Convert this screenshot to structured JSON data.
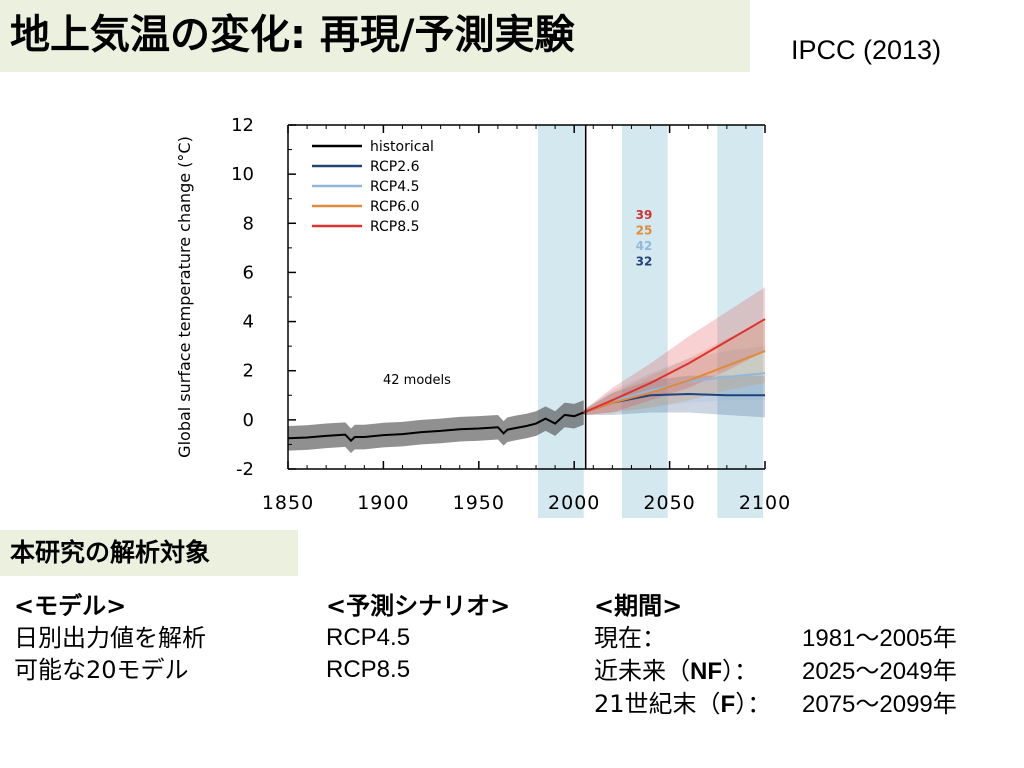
{
  "header": {
    "title": "地上気温の変化: 再現/予測実験",
    "source": "IPCC (2013)",
    "background": "#ebf1de"
  },
  "chart_data": {
    "type": "line",
    "ylabel": "Global surface temperature change (°C)",
    "xlim": [
      1850,
      2100
    ],
    "ylim": [
      -2,
      12
    ],
    "xticks": [
      "1850",
      "1900",
      "1950",
      "2000",
      "2050",
      "2100"
    ],
    "yticks": [
      "12",
      "10",
      "8",
      "6",
      "4",
      "2",
      "0",
      "-2"
    ],
    "annotation": "42 models",
    "shaded_periods": [
      [
        1981,
        2005
      ],
      [
        2025,
        2049
      ],
      [
        2075,
        2099
      ]
    ],
    "model_counts": [
      {
        "value": "39",
        "color": "#cc3333"
      },
      {
        "value": "25",
        "color": "#e08a3c"
      },
      {
        "value": "42",
        "color": "#8fb8dc"
      },
      {
        "value": "32",
        "color": "#22427a"
      }
    ],
    "series": [
      {
        "name": "historical",
        "color": "#000000",
        "band_color": "#555555",
        "x": [
          1850,
          1860,
          1870,
          1880,
          1883,
          1885,
          1890,
          1900,
          1910,
          1920,
          1930,
          1940,
          1950,
          1960,
          1963,
          1965,
          1970,
          1975,
          1980,
          1985,
          1990,
          1995,
          2000,
          2005
        ],
        "y": [
          -0.75,
          -0.72,
          -0.65,
          -0.6,
          -0.85,
          -0.7,
          -0.7,
          -0.62,
          -0.58,
          -0.5,
          -0.45,
          -0.38,
          -0.35,
          -0.3,
          -0.55,
          -0.4,
          -0.32,
          -0.25,
          -0.15,
          0.05,
          -0.15,
          0.2,
          0.15,
          0.3
        ],
        "band": 0.5
      },
      {
        "name": "RCP2.6",
        "color": "#22427a",
        "band_color": "#22427a",
        "x": [
          2005,
          2020,
          2040,
          2060,
          2080,
          2100
        ],
        "y": [
          0.3,
          0.7,
          1.0,
          1.05,
          1.0,
          1.0
        ],
        "band_lo": [
          0.2,
          0.2,
          0.3,
          0.3,
          0.2,
          0.1
        ],
        "band_hi": [
          0.4,
          1.1,
          1.6,
          1.8,
          1.8,
          1.8
        ]
      },
      {
        "name": "RCP4.5",
        "color": "#8fb8dc",
        "band_color": "#8fb8dc",
        "x": [
          2005,
          2020,
          2040,
          2060,
          2080,
          2100
        ],
        "y": [
          0.3,
          0.75,
          1.2,
          1.55,
          1.75,
          1.9
        ],
        "band_lo": [
          0.2,
          0.3,
          0.5,
          0.7,
          0.8,
          0.8
        ],
        "band_hi": [
          0.4,
          1.2,
          1.9,
          2.5,
          2.8,
          3.0
        ]
      },
      {
        "name": "RCP6.0",
        "color": "#e08a3c",
        "band_color": "#e08a3c",
        "x": [
          2005,
          2020,
          2040,
          2060,
          2080,
          2100
        ],
        "y": [
          0.3,
          0.7,
          1.1,
          1.6,
          2.2,
          2.8
        ],
        "band_lo": [
          0.2,
          0.3,
          0.5,
          0.8,
          1.2,
          1.5
        ],
        "band_hi": [
          0.4,
          1.1,
          1.8,
          2.5,
          3.3,
          4.0
        ]
      },
      {
        "name": "RCP8.5",
        "color": "#e03030",
        "band_color": "#e03030",
        "x": [
          2005,
          2020,
          2040,
          2060,
          2080,
          2100
        ],
        "y": [
          0.3,
          0.8,
          1.5,
          2.3,
          3.2,
          4.1
        ],
        "band_lo": [
          0.2,
          0.3,
          0.8,
          1.3,
          2.0,
          2.8
        ],
        "band_hi": [
          0.4,
          1.3,
          2.3,
          3.4,
          4.4,
          5.4
        ]
      }
    ]
  },
  "section": {
    "title": "本研究の解析対象"
  },
  "columns": {
    "model": {
      "header": "<モデル>",
      "rows": [
        "日別出力値を解析",
        "可能な20モデル"
      ]
    },
    "scenario": {
      "header": "<予測シナリオ>",
      "rows": [
        "RCP4.5",
        "RCP8.5"
      ]
    },
    "period": {
      "header": "<期間>",
      "rows": [
        {
          "label": "現在：",
          "range": "1981～2005年"
        },
        {
          "label_pre": "近未来（",
          "label_bold": "NF",
          "label_post": "）：",
          "range": "2025～2049年"
        },
        {
          "label_pre": "21世紀末（",
          "label_bold": "F",
          "label_post": "）：",
          "range": "2075～2099年"
        }
      ]
    }
  }
}
